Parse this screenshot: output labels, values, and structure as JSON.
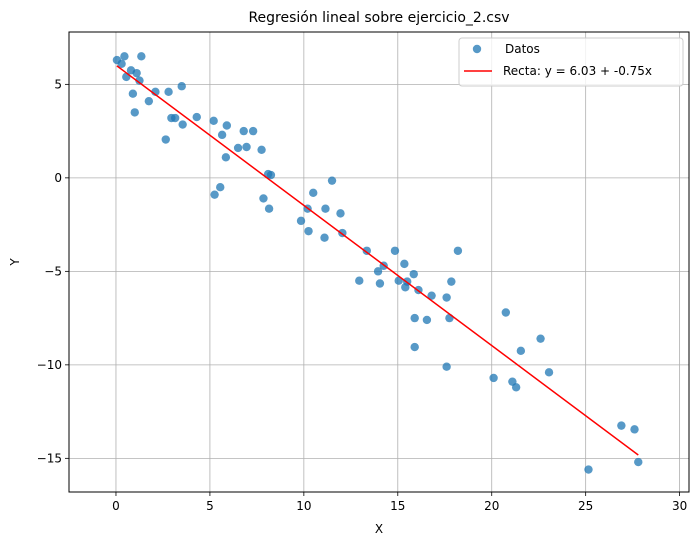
{
  "chart_data": {
    "type": "scatter",
    "title": "Regresión lineal sobre ejercicio_2.csv",
    "xlabel": "X",
    "ylabel": "Y",
    "xlim": [
      -2.5,
      30.5
    ],
    "ylim": [
      -16.8,
      7.8
    ],
    "xticks": [
      0,
      5,
      10,
      15,
      20,
      25,
      30
    ],
    "xtick_labels": [
      "0",
      "5",
      "10",
      "15",
      "20",
      "25",
      "30"
    ],
    "yticks": [
      5,
      0,
      -5,
      -10,
      -15
    ],
    "ytick_labels": [
      "5",
      "0",
      "−5",
      "−10",
      "−15"
    ],
    "grid": true,
    "legend_position": "top-right",
    "legend": [
      "Datos",
      "Recta: y = 6.03 + -0.75x"
    ],
    "scatter_color": "#1f77b4",
    "line_color": "#ff0000",
    "series": [
      {
        "name": "Datos",
        "kind": "scatter",
        "x": [
          0.05,
          0.3,
          0.45,
          0.55,
          0.8,
          0.9,
          1.0,
          1.1,
          1.25,
          1.35,
          1.75,
          2.1,
          2.65,
          2.8,
          2.95,
          3.15,
          3.5,
          3.55,
          4.3,
          5.2,
          5.25,
          5.55,
          5.65,
          5.85,
          5.9,
          6.5,
          6.8,
          6.95,
          7.3,
          7.75,
          7.85,
          8.1,
          8.15,
          8.25,
          9.85,
          10.2,
          10.25,
          10.5,
          11.1,
          11.15,
          11.5,
          11.95,
          12.05,
          12.95,
          13.35,
          13.95,
          14.05,
          14.25,
          14.85,
          15.05,
          15.35,
          15.4,
          15.5,
          15.85,
          15.9,
          15.9,
          16.1,
          16.55,
          16.8,
          17.6,
          17.75,
          17.85,
          18.2,
          17.6,
          20.1,
          20.75,
          21.1,
          21.3,
          21.55,
          22.6,
          23.05,
          25.15,
          26.9,
          27.6,
          27.8
        ],
        "y": [
          6.3,
          6.1,
          6.5,
          5.4,
          5.75,
          4.5,
          3.5,
          5.6,
          5.2,
          6.5,
          4.1,
          4.6,
          2.05,
          4.6,
          3.2,
          3.2,
          4.9,
          2.85,
          3.25,
          3.05,
          -0.9,
          -0.5,
          2.3,
          1.1,
          2.8,
          1.6,
          2.5,
          1.65,
          2.5,
          1.5,
          -1.1,
          0.2,
          -1.65,
          0.15,
          -2.3,
          -1.65,
          -2.85,
          -0.8,
          -3.2,
          -1.65,
          -0.15,
          -1.9,
          -2.95,
          -5.5,
          -3.9,
          -5.0,
          -5.65,
          -4.7,
          -3.9,
          -5.5,
          -4.6,
          -5.85,
          -5.55,
          -5.15,
          -7.5,
          -9.05,
          -6.0,
          -7.6,
          -6.3,
          -6.4,
          -7.5,
          -5.55,
          -3.9,
          -10.1,
          -10.7,
          -7.2,
          -10.9,
          -11.2,
          -9.25,
          -8.6,
          -10.4,
          -15.6,
          -13.25,
          -13.45,
          -15.2
        ]
      },
      {
        "name": "Recta: y = 6.03 + -0.75x",
        "kind": "line",
        "x": [
          0.05,
          27.8
        ],
        "y": [
          5.99,
          -14.82
        ]
      }
    ]
  }
}
